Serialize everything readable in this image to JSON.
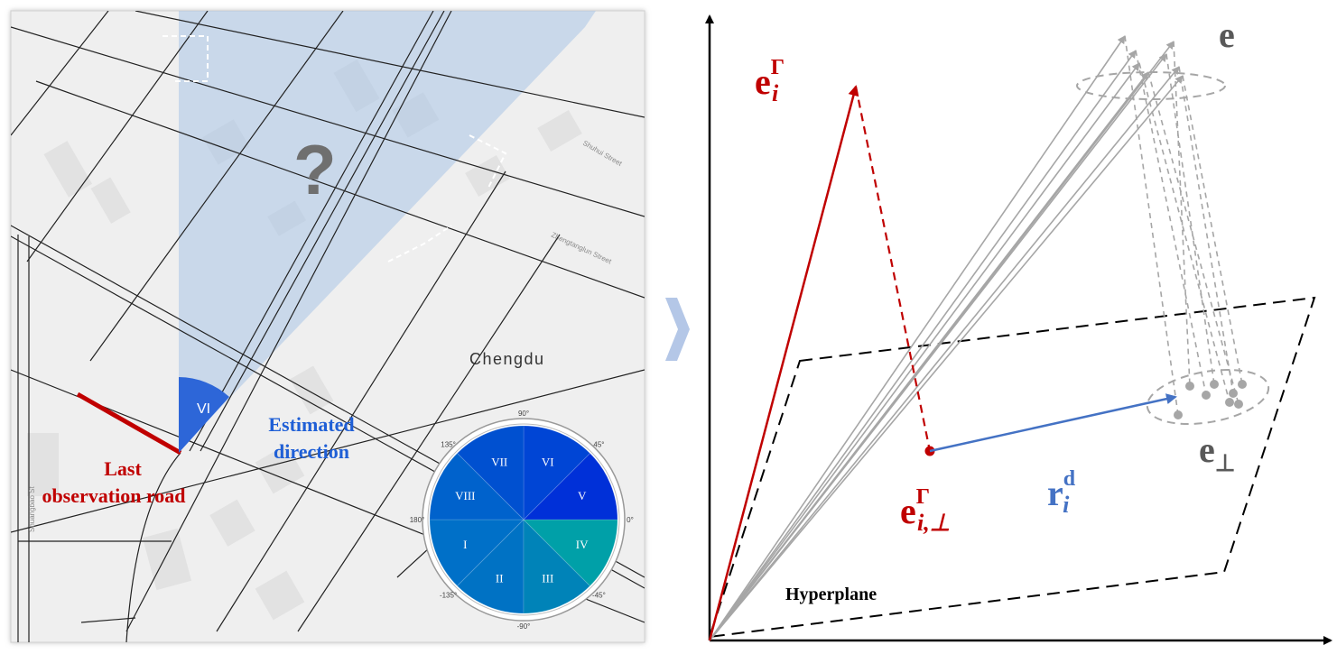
{
  "map": {
    "city_label": "Chengdu",
    "question_mark": "?",
    "sector_label": "VI",
    "estimated_direction": [
      "Estimated",
      "direction"
    ],
    "last_road": [
      "Last",
      "observation road"
    ],
    "street_labels": [
      "Shuhui Street",
      "Zhengtanglun Street",
      "Shuangbao St"
    ],
    "colors": {
      "road_highlight": "#c00000",
      "direction_text": "#1f5fd6",
      "cone": "#a9c4e6",
      "sector": "#2d66d8"
    }
  },
  "compass": {
    "degree_labels": [
      "90°",
      "45°",
      "0°",
      "-45°",
      "-90°",
      "-135°",
      "180°",
      "135°"
    ],
    "sectors": [
      {
        "label": "I",
        "color": "#0070c8"
      },
      {
        "label": "II",
        "color": "#0072c4"
      },
      {
        "label": "III",
        "color": "#0083b8"
      },
      {
        "label": "IV",
        "color": "#00a0a8"
      },
      {
        "label": "V",
        "color": "#0030d8"
      },
      {
        "label": "VI",
        "color": "#0045d5"
      },
      {
        "label": "VII",
        "color": "#0050d0"
      },
      {
        "label": "VIII",
        "color": "#0062cc"
      }
    ]
  },
  "diagram": {
    "hyperplane_label": "Hyperplane",
    "e_base": "e",
    "e_sup": "Γ",
    "e_sub": "i",
    "e_perp_sub": "i,⊥",
    "r_base": "r",
    "r_sup": "d",
    "r_sub": "i",
    "e_set_label": "e",
    "e_perp_label": "e",
    "perp_symbol": "⊥",
    "colors": {
      "red": "#c00000",
      "blue": "#4472c4",
      "gray": "#a6a6a6",
      "dark_gray": "#595959"
    }
  }
}
